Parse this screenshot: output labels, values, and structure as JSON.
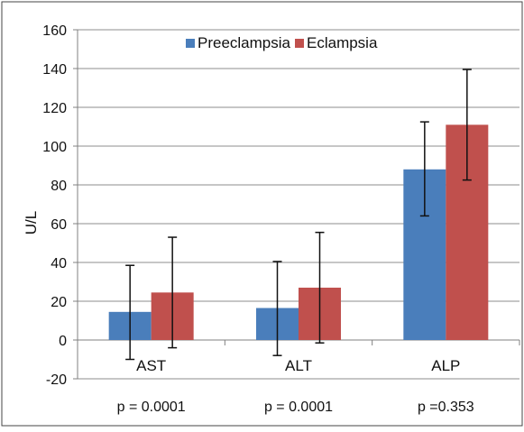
{
  "chart_data": {
    "type": "bar",
    "title": "",
    "xlabel": "",
    "ylabel": "U/L",
    "ylim": [
      -20,
      160
    ],
    "yticks": [
      -20,
      0,
      20,
      40,
      60,
      80,
      100,
      120,
      140,
      160
    ],
    "grid": true,
    "legend_position": "top-center",
    "categories": [
      "AST",
      "ALT",
      "ALP"
    ],
    "series": [
      {
        "name": "Preeclampsia",
        "color": "#4a7ebb",
        "values": [
          14.5,
          16.5,
          88
        ],
        "error_low": [
          -10,
          -8,
          64
        ],
        "error_high": [
          38.5,
          40.5,
          112.5
        ]
      },
      {
        "name": "Eclampsia",
        "color": "#c0504d",
        "values": [
          24.5,
          27,
          111
        ],
        "error_low": [
          -4,
          -1.5,
          82.5
        ],
        "error_high": [
          53,
          55.5,
          139.5
        ]
      }
    ],
    "annotations": [
      "p = 0.0001",
      "p = 0.0001",
      "p =0.353"
    ]
  }
}
